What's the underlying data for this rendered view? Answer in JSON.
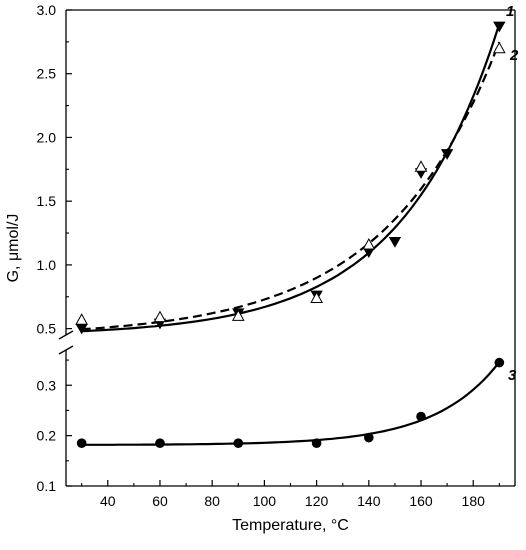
{
  "chart_data": {
    "type": "scatter",
    "title": "",
    "xlabel": "Temperature, °C",
    "ylabel": "G, μmol/J",
    "xlim": [
      24,
      196
    ],
    "x_ticks": [
      40,
      60,
      80,
      100,
      120,
      140,
      160,
      180
    ],
    "y_axis_break": true,
    "upper_panel": {
      "ylim": [
        0.45,
        3.0
      ],
      "y_ticks": [
        "0.5",
        "1.0",
        "1.5",
        "2.0",
        "2.5",
        "3.0"
      ]
    },
    "lower_panel": {
      "ylim": [
        0.1,
        0.37
      ],
      "y_ticks": [
        "0.1",
        "0.2",
        "0.3"
      ]
    },
    "grid": false,
    "series": [
      {
        "name": "1",
        "marker": "filled-triangle-down",
        "panel": "upper",
        "line": "solid",
        "points": [
          [
            30,
            0.5
          ],
          [
            60,
            0.54
          ],
          [
            90,
            0.62
          ],
          [
            120,
            0.76
          ],
          [
            140,
            1.1
          ],
          [
            150,
            1.18
          ],
          [
            160,
            1.72
          ],
          [
            170,
            1.87
          ],
          [
            190,
            2.87
          ]
        ]
      },
      {
        "name": "2",
        "marker": "open-triangle-up",
        "panel": "upper",
        "line": "dashed",
        "points": [
          [
            30,
            0.57
          ],
          [
            60,
            0.59
          ],
          [
            90,
            0.6
          ],
          [
            120,
            0.74
          ],
          [
            140,
            1.16
          ],
          [
            160,
            1.77
          ],
          [
            190,
            2.7
          ]
        ]
      },
      {
        "name": "3",
        "marker": "filled-circle",
        "panel": "lower",
        "line": "solid",
        "points": [
          [
            30,
            0.185
          ],
          [
            60,
            0.185
          ],
          [
            90,
            0.185
          ],
          [
            120,
            0.185
          ],
          [
            140,
            0.196
          ],
          [
            160,
            0.238
          ],
          [
            190,
            0.345
          ]
        ]
      }
    ]
  }
}
